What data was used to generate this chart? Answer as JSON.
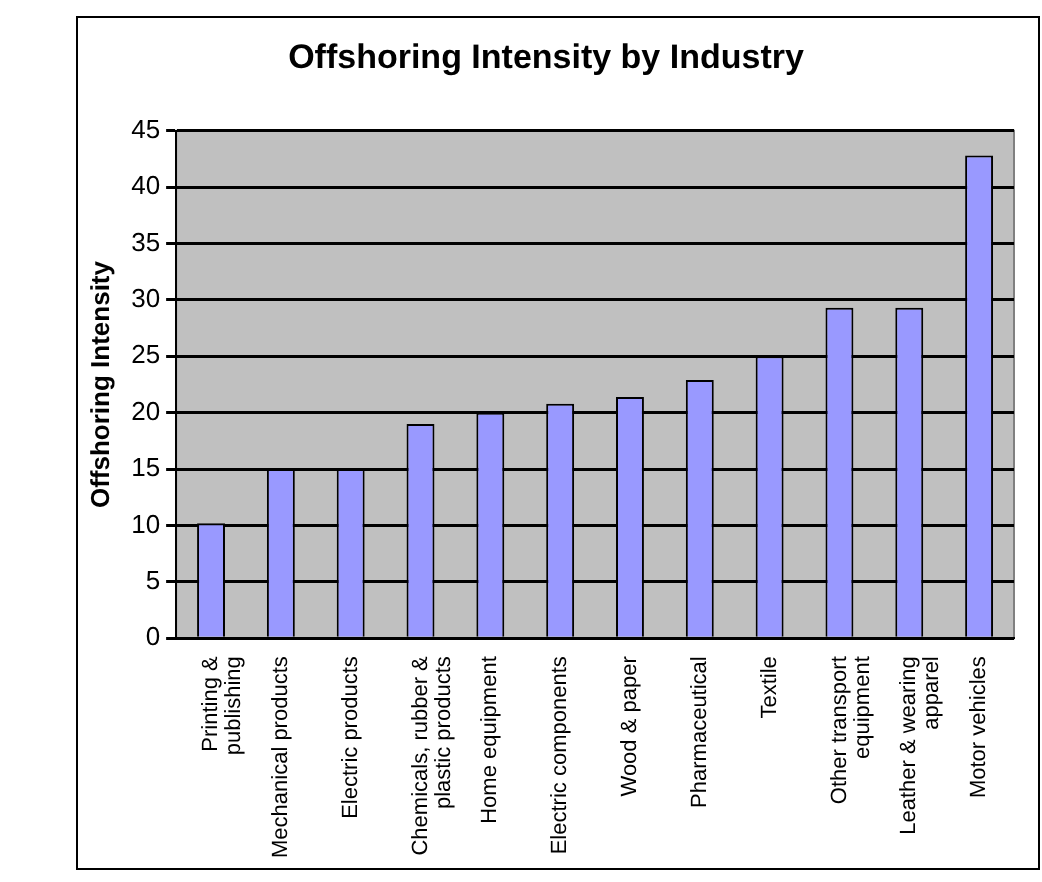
{
  "chart_data": {
    "type": "bar",
    "title": "Offshoring Intensity by Industry",
    "ylabel": "Offshoring Intensity",
    "categories": [
      "Printing & publishing",
      "Mechanical products",
      "Electric products",
      "Chemicals, rubber & plastic products",
      "Home equipment",
      "Electric components",
      "Wood & paper",
      "Pharmaceutical",
      "Textile",
      "Other transport equipment",
      "Leather & wearing apparel",
      "Motor vehicles"
    ],
    "values": [
      10.2,
      15,
      15,
      19,
      20,
      20.8,
      21.4,
      22.9,
      25,
      29.3,
      29.3,
      42.8
    ],
    "color": "#9999ff",
    "ylim": [
      0,
      45
    ],
    "yticks": [
      0,
      5,
      10,
      15,
      20,
      25,
      30,
      35,
      40,
      45
    ],
    "grid": "y",
    "legend": false
  }
}
